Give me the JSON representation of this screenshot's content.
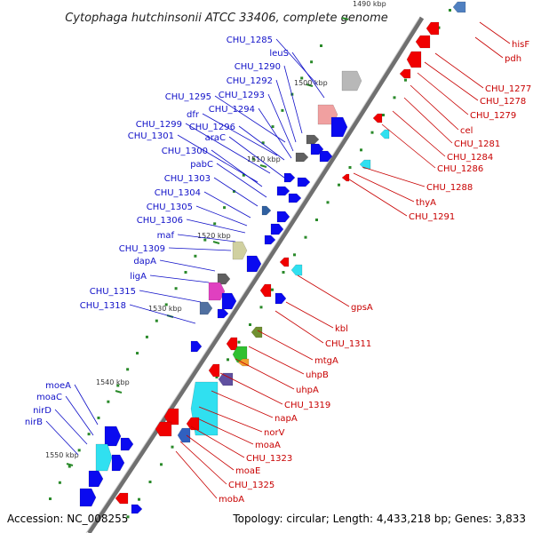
{
  "title": "Cytophaga hutchinsonii ATCC 33406, complete genome",
  "accession": "Accession: NC_008255",
  "summary": "Topology: circular; Length: 4,433,218 bp; Genes: 3,833",
  "kbp_marks": [
    "1490 kbp",
    "1500 kbp",
    "1510 kbp",
    "1520 kbp",
    "1530 kbp",
    "1540 kbp",
    "1550 kbp"
  ],
  "forward_genes": [
    "CHU_1285",
    "leuS",
    "CHU_1290",
    "CHU_1292",
    "CHU_1293",
    "CHU_1295",
    "CHU_1294",
    "dfr",
    "CHU_1296",
    "CHU_1299",
    "araC",
    "CHU_1301",
    "CHU_1300",
    "pabC",
    "CHU_1303",
    "CHU_1304",
    "CHU_1305",
    "CHU_1306",
    "maf",
    "CHU_1309",
    "dapA",
    "ligA",
    "CHU_1315",
    "CHU_1318",
    "moeA",
    "moaC",
    "nirD",
    "nirB"
  ],
  "reverse_genes": [
    "hisF",
    "pdh",
    "CHU_1277",
    "CHU_1278",
    "CHU_1279",
    "cel",
    "CHU_1281",
    "CHU_1284",
    "CHU_1286",
    "CHU_1288",
    "thyA",
    "CHU_1291",
    "gpsA",
    "kbl",
    "CHU_1311",
    "mtgA",
    "uhpB",
    "uhpA",
    "CHU_1319",
    "napA",
    "norV",
    "moaA",
    "CHU_1323",
    "moaE",
    "CHU_1325",
    "mobA"
  ],
  "colors": {
    "forward_label": "#1010c8",
    "reverse_label": "#c80000",
    "forward_gene": "#0a0af0",
    "reverse_gene": "#f00000",
    "backbone": "#707070",
    "tick": "#2a8a2a"
  }
}
